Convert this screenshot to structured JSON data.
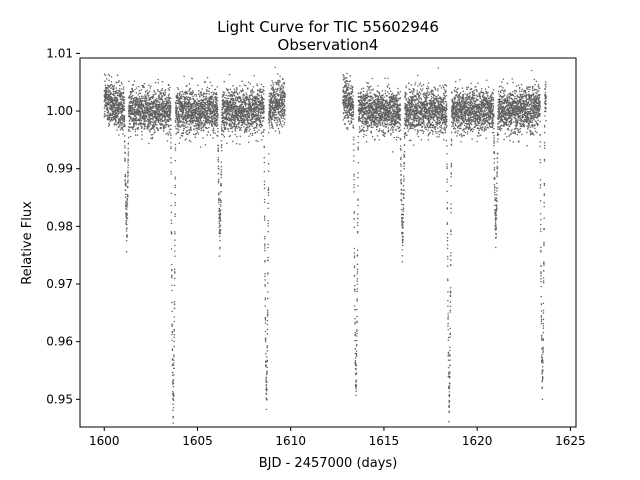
{
  "chart_data": {
    "type": "scatter",
    "title": "Light Curve for TIC 55602946",
    "subtitle": "Observation4",
    "xlabel": "BJD - 2457000 (days)",
    "ylabel": "Relative Flux",
    "xlim": [
      1598.7,
      1625.3
    ],
    "ylim": [
      0.9452,
      1.0092
    ],
    "x_ticks": [
      1600,
      1605,
      1610,
      1615,
      1620,
      1625
    ],
    "y_ticks": [
      0.95,
      0.96,
      0.97,
      0.98,
      0.99,
      1.0,
      1.01
    ],
    "x_tick_labels": [
      "1600",
      "1605",
      "1610",
      "1615",
      "1620",
      "1625"
    ],
    "y_tick_labels": [
      "0.95",
      "0.96",
      "0.97",
      "0.98",
      "0.99",
      "1.00",
      "1.01"
    ],
    "grid": false,
    "marker_color": "#606060",
    "observing_segments": [
      [
        1600.0,
        1609.7
      ],
      [
        1612.8,
        1623.7
      ]
    ],
    "baseline_flux": 1.0,
    "eclipses": [
      {
        "time": 1601.2,
        "min_flux": 0.9805,
        "kind": "secondary"
      },
      {
        "time": 1603.7,
        "min_flux": 0.9495,
        "kind": "primary"
      },
      {
        "time": 1606.2,
        "min_flux": 0.979,
        "kind": "secondary"
      },
      {
        "time": 1608.7,
        "min_flux": 0.9507,
        "kind": "primary"
      },
      {
        "time": 1613.5,
        "min_flux": 0.952,
        "kind": "primary"
      },
      {
        "time": 1616.0,
        "min_flux": 0.978,
        "kind": "secondary"
      },
      {
        "time": 1618.5,
        "min_flux": 0.9493,
        "kind": "primary"
      },
      {
        "time": 1621.0,
        "min_flux": 0.98,
        "kind": "secondary"
      },
      {
        "time": 1623.5,
        "min_flux": 0.952,
        "kind": "primary"
      }
    ]
  }
}
